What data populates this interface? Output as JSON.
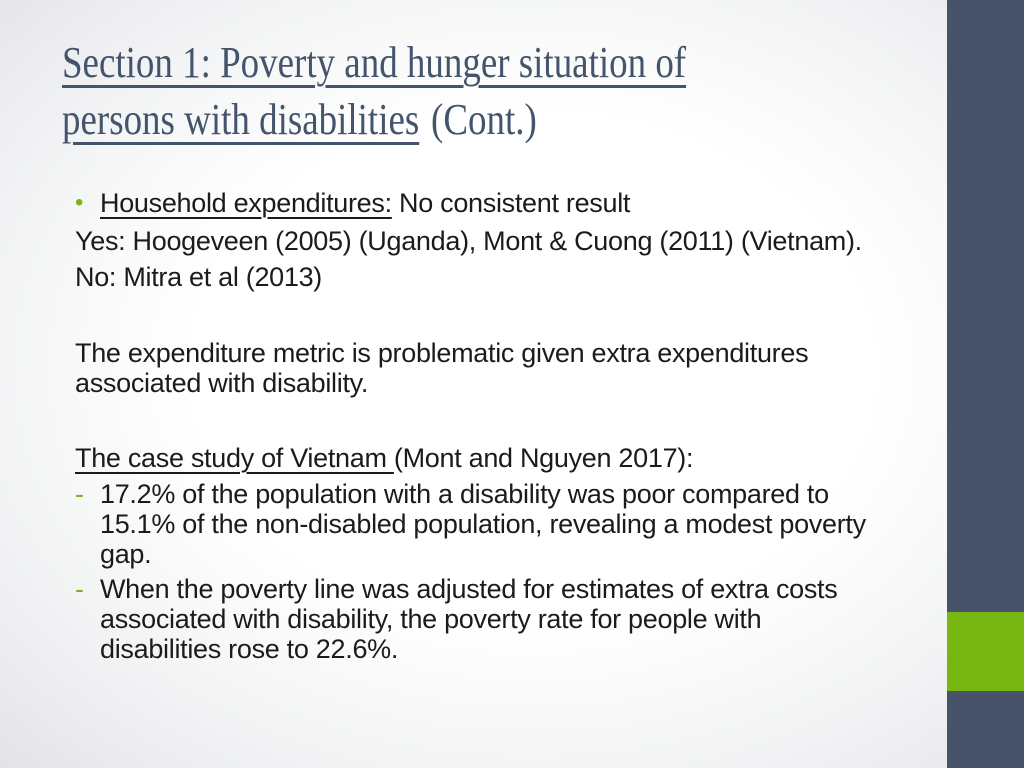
{
  "colors": {
    "slate": "#475369",
    "green": "#78b713",
    "titlecolor": "#44546c"
  },
  "title": {
    "line1_underlined": "Section 1: Poverty and hunger situation of",
    "line2_underlined": "persons with disabilities",
    "line2_rest": "(Cont.)"
  },
  "body": {
    "bullet_marker": "•",
    "dash_marker": "-",
    "bullet1": {
      "underlined": "Household expenditures:",
      "rest": " No consistent result"
    },
    "line_yes": "Yes: Hoogeveen (2005) (Uganda), Mont & Cuong (2011) (Vietnam).",
    "line_no": "No: Mitra et al (2013)",
    "para_expenditure": {
      "line1": "The expenditure metric is problematic given extra expenditures",
      "line2": "associated with disability."
    },
    "case_study": {
      "underlined": "The case study of Vietnam ",
      "rest": "(Mont and Nguyen 2017):"
    },
    "dash1": {
      "lines": [
        "17.2% of the population with a disability was poor compared to",
        "15.1% of the non-disabled population, revealing a modest poverty",
        "gap."
      ]
    },
    "dash2": {
      "lines": [
        "When the poverty line was adjusted for estimates of extra costs",
        "associated with disability, the poverty rate for people with",
        "disabilities rose to 22.6%."
      ]
    }
  }
}
